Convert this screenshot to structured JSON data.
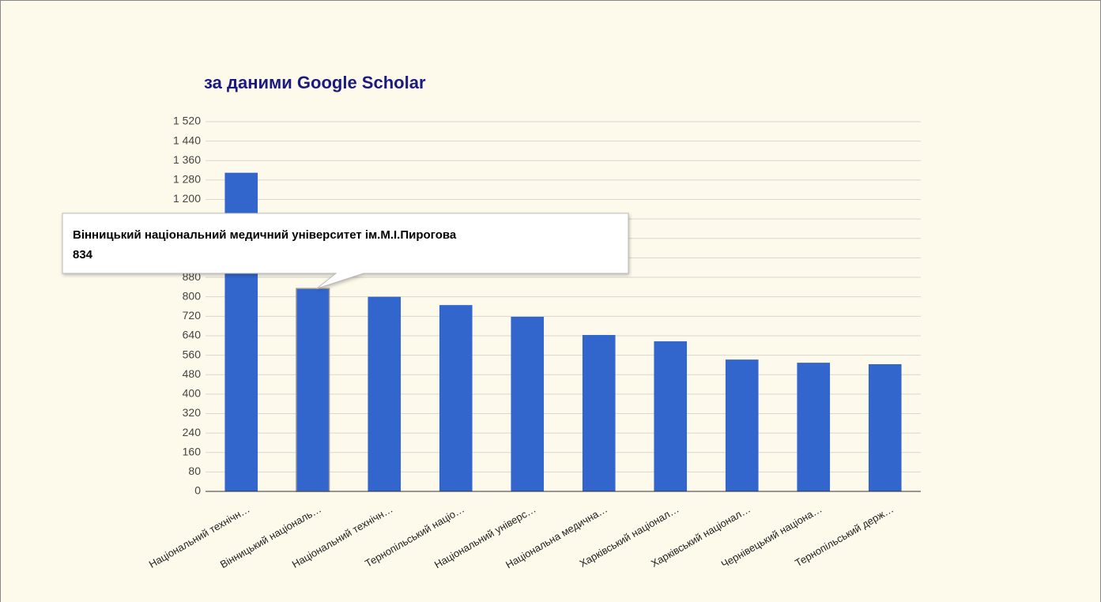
{
  "chart_data": {
    "type": "bar",
    "title": "за даними Google Scholar",
    "categories": [
      "Національний технічн…",
      "Вінницький національ…",
      "Національний технічн…",
      "Тернопільський націо…",
      "Національний універс…",
      "Національна медична…",
      "Харківський націонал…",
      "Харківський націонал…",
      "Чернівецький націона…",
      "Тернопільський держ…"
    ],
    "values": [
      1310,
      834,
      800,
      766,
      718,
      643,
      617,
      542,
      529,
      523
    ],
    "color": "#3366cc",
    "ylim": [
      0,
      1520
    ],
    "yticks": [
      0,
      80,
      160,
      240,
      320,
      400,
      480,
      560,
      640,
      720,
      800,
      880,
      960,
      {
        "value": 1040,
        "label": "1 040"
      },
      {
        "value": 1120,
        "label": "1 120"
      },
      {
        "value": 1200,
        "label": "1 200"
      },
      {
        "value": 1280,
        "label": "1 280"
      },
      {
        "value": 1360,
        "label": "1 360"
      },
      {
        "value": 1440,
        "label": "1 440"
      },
      {
        "value": 1520,
        "label": "1 520"
      }
    ],
    "grid": true,
    "tooltip_title": "Вінницький національний медичний університет ім.М.І.Пирогова"
  }
}
